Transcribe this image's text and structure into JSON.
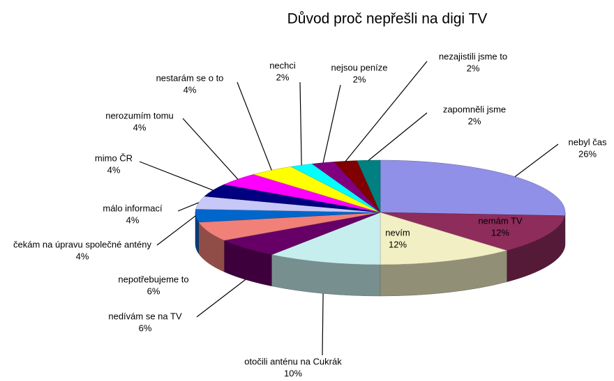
{
  "chart_data": {
    "type": "pie3d",
    "title": "Důvod proč nepřešli na digi TV",
    "categories": [
      "nebyl čas",
      "nemám TV",
      "nevím",
      "otočili anténu na Cukrák",
      "nedívám se na TV",
      "nepotřebujeme to",
      "čekám na úpravu společné antény",
      "málo informací",
      "mimo ČR",
      "nerozumím tomu",
      "nestarám se o to",
      "nechci",
      "nejsou peníze",
      "nezajistili jsme to",
      "zapomněli jsme"
    ],
    "values": [
      26,
      12,
      12,
      10,
      6,
      6,
      4,
      4,
      4,
      4,
      4,
      2,
      2,
      2,
      2
    ],
    "value_labels": [
      "26%",
      "12%",
      "12%",
      "10%",
      "6%",
      "6%",
      "4%",
      "4%",
      "4%",
      "4%",
      "4%",
      "2%",
      "2%",
      "2%",
      "2%"
    ],
    "colors": [
      "#9090e8",
      "#8e2c5c",
      "#f2efc4",
      "#c6eeee",
      "#660066",
      "#f08078",
      "#0066cc",
      "#c8c8f8",
      "#000080",
      "#ff00ff",
      "#ffff00",
      "#00ffff",
      "#800080",
      "#800000",
      "#008080"
    ]
  }
}
